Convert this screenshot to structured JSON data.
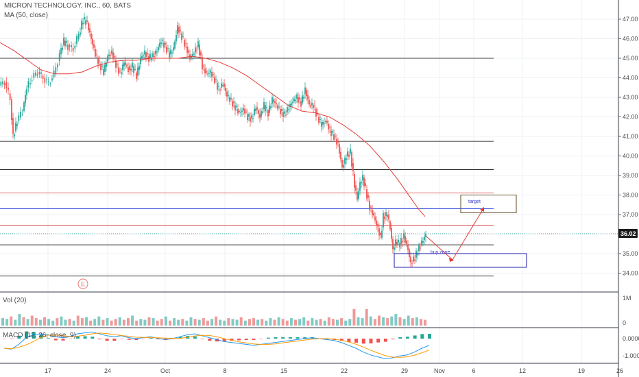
{
  "header": {
    "title": "MICRON TECHNOLOGY, INC., 60, BATS",
    "ma_label": "MA (50, close)",
    "vol_label": "Vol (20)",
    "macd_label": "MACD (12, 26, close, 9)"
  },
  "colors": {
    "up": "#26a69a",
    "down": "#ef5350",
    "ma": "#e53935",
    "macd": "#2196f3",
    "signal": "#ff9800",
    "hline_black": "#000000",
    "hline_red": "#d32f2f",
    "hline_blue": "#1e3cd8",
    "target_box": "#5d4a1f",
    "buy_box": "#1a1aa8",
    "arrow": "#e53935",
    "price_tag": "#1b1b1b"
  },
  "price_axis": {
    "ticks": [
      "47.00",
      "46.00",
      "45.00",
      "44.00",
      "43.00",
      "42.00",
      "41.00",
      "40.00",
      "39.00",
      "38.00",
      "37.00",
      "36.00",
      "35.00",
      "34.00"
    ],
    "current_price": "36.02"
  },
  "volume_axis": {
    "ticks": [
      "1M",
      "0"
    ]
  },
  "macd_axis": {
    "ticks": [
      "0.0000",
      "-1.0000"
    ]
  },
  "time_axis": {
    "ticks": [
      "17",
      "24",
      "Oct",
      "8",
      "15",
      "22",
      "29",
      "Nov",
      "6",
      "12",
      "19",
      "26"
    ]
  },
  "annotations": {
    "target_label": "target",
    "buy_zone_label": "buy zone",
    "earnings_marker": "E"
  },
  "chart_data": {
    "type": "candlestick",
    "title": "MICRON TECHNOLOGY, INC., 60, BATS",
    "ylim": [
      33.5,
      47.5
    ],
    "key_levels": [
      {
        "price": 45.0,
        "color": "black"
      },
      {
        "price": 40.75,
        "color": "black"
      },
      {
        "price": 39.3,
        "color": "black"
      },
      {
        "price": 38.1,
        "color": "red"
      },
      {
        "price": 37.3,
        "color": "blue"
      },
      {
        "price": 36.45,
        "color": "red"
      },
      {
        "price": 35.45,
        "color": "black"
      },
      {
        "price": 33.85,
        "color": "black"
      }
    ],
    "target_zone": [
      37.3,
      38.0
    ],
    "buy_zone": [
      34.3,
      35.0
    ],
    "price_path": [
      [
        0,
        43.6
      ],
      [
        8,
        43.8
      ],
      [
        16,
        42.9
      ],
      [
        20,
        41.0
      ],
      [
        26,
        41.8
      ],
      [
        34,
        42.3
      ],
      [
        40,
        43.5
      ],
      [
        48,
        44.0
      ],
      [
        56,
        44.3
      ],
      [
        64,
        44.0
      ],
      [
        72,
        43.7
      ],
      [
        80,
        44.2
      ],
      [
        88,
        45.2
      ],
      [
        94,
        45.9
      ],
      [
        100,
        45.6
      ],
      [
        108,
        45.5
      ],
      [
        116,
        46.2
      ],
      [
        122,
        47.0
      ],
      [
        128,
        46.8
      ],
      [
        134,
        46.0
      ],
      [
        140,
        45.2
      ],
      [
        146,
        44.7
      ],
      [
        152,
        44.3
      ],
      [
        158,
        45.1
      ],
      [
        164,
        45.3
      ],
      [
        170,
        44.7
      ],
      [
        176,
        44.2
      ],
      [
        182,
        44.8
      ],
      [
        188,
        44.4
      ],
      [
        194,
        44.6
      ],
      [
        200,
        44.1
      ],
      [
        206,
        45.0
      ],
      [
        212,
        45.3
      ],
      [
        218,
        45.0
      ],
      [
        224,
        45.1
      ],
      [
        230,
        45.4
      ],
      [
        236,
        45.9
      ],
      [
        242,
        45.6
      ],
      [
        248,
        45.2
      ],
      [
        254,
        45.5
      ],
      [
        260,
        46.6
      ],
      [
        266,
        46.1
      ],
      [
        272,
        45.6
      ],
      [
        278,
        45.0
      ],
      [
        284,
        45.3
      ],
      [
        290,
        45.7
      ],
      [
        296,
        44.6
      ],
      [
        302,
        44.2
      ],
      [
        308,
        44.3
      ],
      [
        314,
        43.9
      ],
      [
        320,
        43.4
      ],
      [
        326,
        43.7
      ],
      [
        332,
        43.1
      ],
      [
        338,
        42.8
      ],
      [
        344,
        42.5
      ],
      [
        350,
        42.2
      ],
      [
        356,
        42.4
      ],
      [
        362,
        42.0
      ],
      [
        368,
        41.9
      ],
      [
        374,
        42.5
      ],
      [
        380,
        42.0
      ],
      [
        386,
        42.6
      ],
      [
        392,
        42.2
      ],
      [
        398,
        42.9
      ],
      [
        404,
        42.6
      ],
      [
        410,
        42.3
      ],
      [
        416,
        42.1
      ],
      [
        422,
        42.5
      ],
      [
        428,
        42.8
      ],
      [
        434,
        43.0
      ],
      [
        440,
        42.7
      ],
      [
        446,
        43.4
      ],
      [
        452,
        42.6
      ],
      [
        458,
        42.6
      ],
      [
        464,
        42.0
      ],
      [
        470,
        41.6
      ],
      [
        476,
        41.8
      ],
      [
        482,
        41.3
      ],
      [
        488,
        41.0
      ],
      [
        494,
        40.6
      ],
      [
        500,
        39.4
      ],
      [
        506,
        40.0
      ],
      [
        512,
        40.2
      ],
      [
        518,
        38.5
      ],
      [
        522,
        37.8
      ],
      [
        526,
        38.6
      ],
      [
        530,
        38.9
      ],
      [
        536,
        38.0
      ],
      [
        540,
        37.4
      ],
      [
        546,
        36.9
      ],
      [
        552,
        36.3
      ],
      [
        556,
        35.8
      ],
      [
        560,
        36.9
      ],
      [
        566,
        37.0
      ],
      [
        570,
        36.3
      ],
      [
        574,
        35.2
      ],
      [
        578,
        35.6
      ],
      [
        584,
        35.5
      ],
      [
        590,
        35.9
      ],
      [
        596,
        35.2
      ],
      [
        600,
        34.5
      ],
      [
        606,
        34.8
      ],
      [
        612,
        35.3
      ],
      [
        618,
        35.7
      ],
      [
        622,
        36.0
      ]
    ],
    "ma_path": [
      [
        0,
        45.8
      ],
      [
        20,
        45.4
      ],
      [
        40,
        44.9
      ],
      [
        60,
        44.4
      ],
      [
        80,
        44.2
      ],
      [
        100,
        44.2
      ],
      [
        120,
        44.3
      ],
      [
        140,
        44.6
      ],
      [
        160,
        44.8
      ],
      [
        180,
        44.9
      ],
      [
        200,
        44.9
      ],
      [
        220,
        45.0
      ],
      [
        240,
        45.0
      ],
      [
        260,
        45.0
      ],
      [
        280,
        45.1
      ],
      [
        300,
        45.0
      ],
      [
        320,
        44.8
      ],
      [
        340,
        44.5
      ],
      [
        360,
        44.1
      ],
      [
        380,
        43.6
      ],
      [
        400,
        43.1
      ],
      [
        420,
        42.6
      ],
      [
        440,
        42.3
      ],
      [
        460,
        42.2
      ],
      [
        480,
        42.0
      ],
      [
        500,
        41.6
      ],
      [
        520,
        41.1
      ],
      [
        540,
        40.5
      ],
      [
        560,
        39.7
      ],
      [
        580,
        38.8
      ],
      [
        600,
        37.8
      ],
      [
        610,
        37.3
      ],
      [
        620,
        36.9
      ]
    ],
    "volume": [
      0.45,
      0.4,
      0.55,
      0.35,
      0.7,
      0.5,
      0.4,
      0.6,
      0.45,
      0.35,
      0.5,
      0.4,
      0.3,
      0.45,
      0.55,
      0.35,
      0.4,
      0.3,
      0.6,
      0.45,
      0.5,
      0.3,
      0.4,
      0.55,
      0.35,
      0.45,
      0.3,
      0.4,
      0.5,
      0.35,
      0.45,
      0.6,
      0.3,
      0.4,
      0.35,
      0.5,
      0.45,
      0.3,
      0.4,
      0.55,
      0.3,
      0.45,
      0.35,
      0.4,
      0.3,
      0.5,
      0.4,
      0.35,
      0.45,
      0.3,
      0.4,
      0.55,
      0.35,
      0.3,
      0.45,
      0.4,
      0.35,
      0.5,
      0.3,
      0.4,
      0.45,
      0.35,
      0.4,
      0.3,
      0.45,
      0.35,
      0.5,
      0.4,
      0.3,
      0.45,
      0.35,
      0.4,
      0.5,
      0.3,
      0.45,
      0.35,
      0.4,
      0.3,
      0.5,
      0.4,
      0.35,
      0.45,
      0.3,
      0.4,
      1.0,
      0.5,
      0.45,
      1.0,
      0.55,
      0.4,
      0.6,
      0.5,
      0.45,
      0.55,
      0.7,
      0.5,
      0.4,
      0.6,
      0.45,
      0.5,
      0.4,
      0.35
    ],
    "macd": [
      -0.5,
      -0.55,
      -0.3,
      0.05,
      0.2,
      0.25,
      0.2,
      0.1,
      0.05,
      0.1,
      0.25,
      0.3,
      0.35,
      0.25,
      0.15,
      0.1,
      0.15,
      0.05,
      0.0,
      0.05,
      0.1,
      0.0,
      -0.05,
      0.0,
      0.1,
      0.2,
      0.25,
      0.15,
      0.05,
      -0.05,
      -0.15,
      -0.2,
      -0.25,
      -0.3,
      -0.35,
      -0.3,
      -0.25,
      -0.2,
      -0.15,
      -0.1,
      -0.05,
      0.0,
      0.05,
      0.0,
      -0.05,
      -0.1,
      -0.2,
      -0.35,
      -0.5,
      -0.7,
      -0.85,
      -0.95,
      -1.05,
      -1.0,
      -0.9,
      -0.85,
      -0.7,
      -0.5,
      -0.35
    ]
  }
}
